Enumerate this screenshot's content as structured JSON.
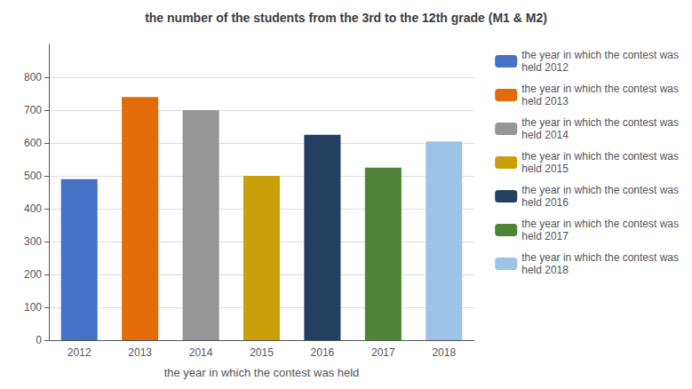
{
  "chart_data": {
    "type": "bar",
    "title": "the number of the students from the 3rd to the 12th grade (M1 & M2)",
    "xlabel": "the year in which the contest was held",
    "categories": [
      "2012",
      "2013",
      "2014",
      "2015",
      "2016",
      "2017",
      "2018"
    ],
    "values": [
      490,
      740,
      700,
      500,
      625,
      525,
      605
    ],
    "colors": [
      "#4472C4",
      "#E36C09",
      "#969696",
      "#C9A00A",
      "#243F60",
      "#4E8435",
      "#9DC3E6"
    ],
    "legend_labels": [
      "the year in which the contest was\nheld 2012",
      "the year in which the contest was\nheld 2013",
      "the year in which the contest was\nheld 2014",
      "the year in which the contest was\nheld 2015",
      "the year in which the contest was\nheld 2016",
      "the year in which the contest was\nheld 2017",
      "the year in which the contest was\nheld 2018"
    ],
    "ylim": [
      0,
      900
    ],
    "yticks": [
      0,
      100,
      200,
      300,
      400,
      500,
      600,
      700,
      800
    ],
    "grid": true,
    "legend": "right"
  }
}
